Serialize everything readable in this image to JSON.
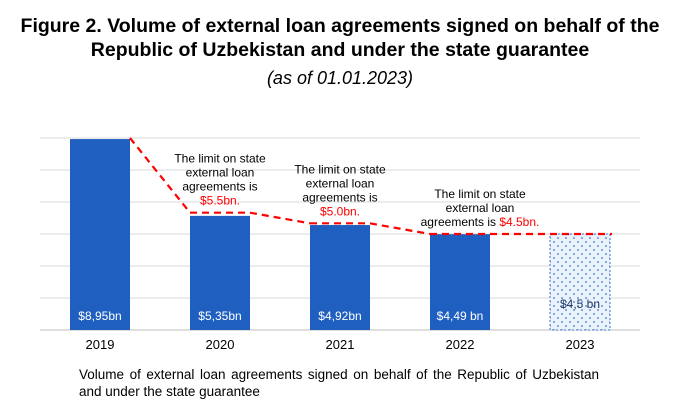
{
  "title_line1": "Figure 2. Volume of external loan agreements signed on behalf of the",
  "title_line2": "Republic of Uzbekistan and under the state guarantee",
  "subtitle": "(as of 01.01.2023)",
  "footnote": "Volume of external loan agreements signed on behalf of the Republic of Uzbekistan and under the state guarantee",
  "colors": {
    "bar": "#1f5fbf",
    "limit_line": "#ff0000",
    "grid": "#d9d9d9",
    "axis": "#bfbfbf",
    "projected_fill": "#eaf2fb"
  },
  "chart_data": {
    "type": "bar",
    "categories": [
      "2019",
      "2020",
      "2021",
      "2022",
      "2023"
    ],
    "values": [
      8.95,
      5.35,
      4.92,
      4.49,
      4.5
    ],
    "value_labels": [
      "$8,95bn",
      "$5,35bn",
      "$4,92bn",
      "$4,49 bn",
      "$4,5 bn"
    ],
    "projected": [
      false,
      false,
      false,
      false,
      true
    ],
    "ylim": [
      0,
      9
    ],
    "grid": true,
    "limit_series": {
      "style": "dashed",
      "segments": [
        {
          "from": "2019",
          "to": "2020",
          "from_value": 9.0,
          "to_value": 5.5
        },
        {
          "from": "2020",
          "to": "2021",
          "from_value": 5.5,
          "to_value": 5.0
        },
        {
          "from": "2021",
          "to": "2022",
          "from_value": 5.0,
          "to_value": 4.5
        },
        {
          "from": "2022",
          "to": "2023",
          "from_value": 4.5,
          "to_value": 4.5
        }
      ]
    },
    "annotations": [
      {
        "category": "2020",
        "lines": [
          "The limit on state",
          "external loan",
          "agreements is"
        ],
        "value_text": "$5.5bn."
      },
      {
        "category": "2021",
        "lines": [
          "The limit on state",
          "external loan",
          "agreements is"
        ],
        "value_text": "$5.0bn."
      },
      {
        "category": "2022",
        "lines": [
          "The limit on state",
          "external loan"
        ],
        "last_line_prefix": "agreements is ",
        "value_text": "$4.5bn."
      }
    ]
  }
}
